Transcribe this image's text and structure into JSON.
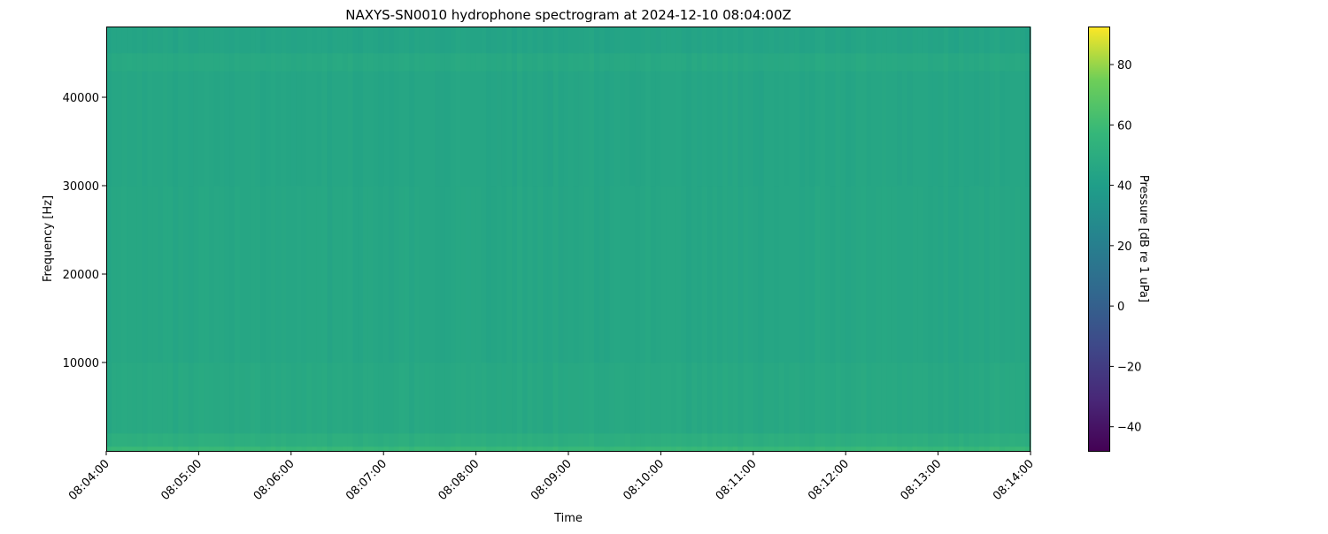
{
  "chart_data": {
    "type": "heatmap",
    "title": "NAXYS-SN0010 hydrophone spectrogram at 2024-12-10 08:04:00Z",
    "xlabel": "Time",
    "ylabel": "Frequency [Hz]",
    "colorbar_label": "Pressure [dB re 1 uPa]",
    "colormap": "viridis",
    "xlim": [
      "08:04:00",
      "08:14:00"
    ],
    "ylim": [
      0,
      48000
    ],
    "clim": [
      -48,
      92.6
    ],
    "x_ticks": [
      "08:04:00",
      "08:05:00",
      "08:06:00",
      "08:07:00",
      "08:08:00",
      "08:09:00",
      "08:10:00",
      "08:11:00",
      "08:12:00",
      "08:13:00",
      "08:14:00"
    ],
    "y_ticks": [
      10000,
      20000,
      30000,
      40000
    ],
    "colorbar_ticks": [
      -40,
      -20,
      0,
      20,
      40,
      60,
      80
    ],
    "grid": false,
    "frequency_bands_hz": [
      [
        0,
        500
      ],
      [
        500,
        2000
      ],
      [
        2000,
        10000
      ],
      [
        10000,
        30000
      ],
      [
        30000,
        43000
      ],
      [
        43000,
        45000
      ],
      [
        45000,
        48000
      ]
    ],
    "band_level_db": [
      58,
      51,
      47,
      45.5,
      45,
      47,
      44
    ]
  }
}
